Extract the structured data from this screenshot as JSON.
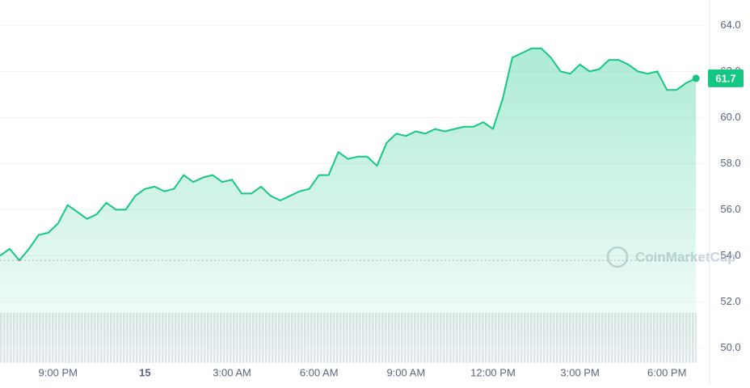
{
  "chart_data": {
    "type": "area-line",
    "categories": [
      null,
      null,
      null,
      null,
      null,
      null,
      "9:00 PM",
      null,
      null,
      null,
      null,
      null,
      null,
      null,
      null,
      "15",
      null,
      null,
      null,
      null,
      null,
      null,
      null,
      null,
      "3:00 AM",
      null,
      null,
      null,
      null,
      null,
      null,
      null,
      null,
      "6:00 AM",
      null,
      null,
      null,
      null,
      null,
      null,
      null,
      null,
      "9:00 AM",
      null,
      null,
      null,
      null,
      null,
      null,
      null,
      null,
      "12:00 PM",
      null,
      null,
      null,
      null,
      null,
      null,
      null,
      null,
      "3:00 PM",
      null,
      null,
      null,
      null,
      null,
      null,
      null,
      null,
      "6:00 PM",
      null,
      null,
      null
    ],
    "series": [
      {
        "color": "#16c784",
        "down_color": "#ea3943",
        "values": [
          54.0,
          54.3,
          53.8,
          54.3,
          54.9,
          55.0,
          55.4,
          56.2,
          55.9,
          55.6,
          55.8,
          56.3,
          56.0,
          56.0,
          56.6,
          56.9,
          57.0,
          56.8,
          56.9,
          57.5,
          57.2,
          57.4,
          57.5,
          57.2,
          57.3,
          56.7,
          56.7,
          57.0,
          56.6,
          56.4,
          56.6,
          56.8,
          56.9,
          57.5,
          57.5,
          58.5,
          58.2,
          58.3,
          58.3,
          57.9,
          58.9,
          59.3,
          59.2,
          59.4,
          59.3,
          59.5,
          59.4,
          59.5,
          59.6,
          59.6,
          59.8,
          59.5,
          60.8,
          62.6,
          62.8,
          63.0,
          63.0,
          62.6,
          62.0,
          61.9,
          62.3,
          62.0,
          62.1,
          62.5,
          62.5,
          62.3,
          62.0,
          61.9,
          62.0,
          61.2,
          61.2,
          61.5,
          61.7
        ]
      }
    ],
    "reference_value": 53.8,
    "ylim": [
      49.4,
      65.1
    ],
    "yticks": [
      {
        "value": 50,
        "label": "50.0"
      },
      {
        "value": 52,
        "label": "52.0"
      },
      {
        "value": 54,
        "label": "54.0"
      },
      {
        "value": 56,
        "label": "56.0"
      },
      {
        "value": 58,
        "label": "58.0"
      },
      {
        "value": 60,
        "label": "60.0"
      },
      {
        "value": 62,
        "label": "62.0"
      },
      {
        "value": 64,
        "label": "64.0"
      }
    ],
    "grid": true,
    "watermark": "CoinMarketCap"
  }
}
